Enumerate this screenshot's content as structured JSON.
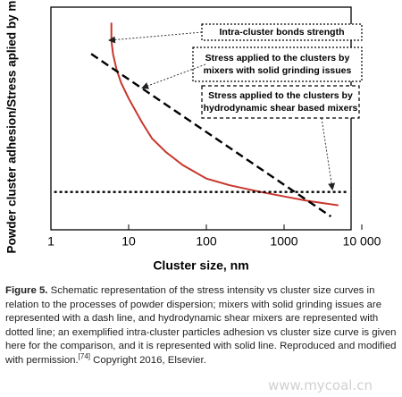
{
  "chart_data": {
    "type": "line",
    "ylabel": "Powder cluster adhesion/Stress aplied by mixer",
    "xlabel": "Cluster size, nm",
    "xscale": "log",
    "xlim": [
      1,
      10000
    ],
    "xticks": [
      1,
      10,
      100,
      1000,
      {
        "value": 10000,
        "label": "10 000"
      }
    ],
    "ylim": [
      0,
      100
    ],
    "grid": false,
    "series": [
      {
        "color": "#c8372d",
        "style": "solid",
        "x": [
          6,
          6,
          6.3,
          7,
          8,
          10,
          15,
          20,
          30,
          50,
          100,
          200,
          500,
          1000,
          2000,
          5000
        ],
        "values": [
          93,
          85,
          79,
          72,
          66,
          59,
          48,
          41,
          35,
          29,
          23,
          20,
          17,
          15,
          13,
          11
        ]
      },
      {
        "color": "#000000",
        "style": "dashed",
        "x": [
          3.3,
          4000
        ],
        "values": [
          79,
          6
        ]
      },
      {
        "color": "#000000",
        "style": "dotted",
        "x": [
          1.1,
          6500
        ],
        "values": [
          17,
          17
        ]
      }
    ],
    "annotations": [
      {
        "lines": [
          "Intra-cluster  bonds strength"
        ]
      },
      {
        "lines": [
          "Stress applied to the clusters by",
          "mixers with solid grinding issues"
        ]
      },
      {
        "lines": [
          "Stress applied to the clusters by",
          "hydrodynamic shear based mixers"
        ]
      }
    ]
  },
  "caption": {
    "label": "Figure 5.",
    "text": " Schematic representation of the stress intensity vs cluster size curves in relation to the processes of powder dispersion; mixers with solid grinding issues are represented with a dash line, and hydrodynamic shear mixers are represented with dotted line; an exemplified intra-cluster particles adhesion vs cluster size curve is given here for the comparison, and it is represented with solid line. Reproduced and modified with permission.",
    "ref": "[74]",
    "tail": " Copyright 2016, Elsevier."
  },
  "watermark": "www.mycoal.cn"
}
